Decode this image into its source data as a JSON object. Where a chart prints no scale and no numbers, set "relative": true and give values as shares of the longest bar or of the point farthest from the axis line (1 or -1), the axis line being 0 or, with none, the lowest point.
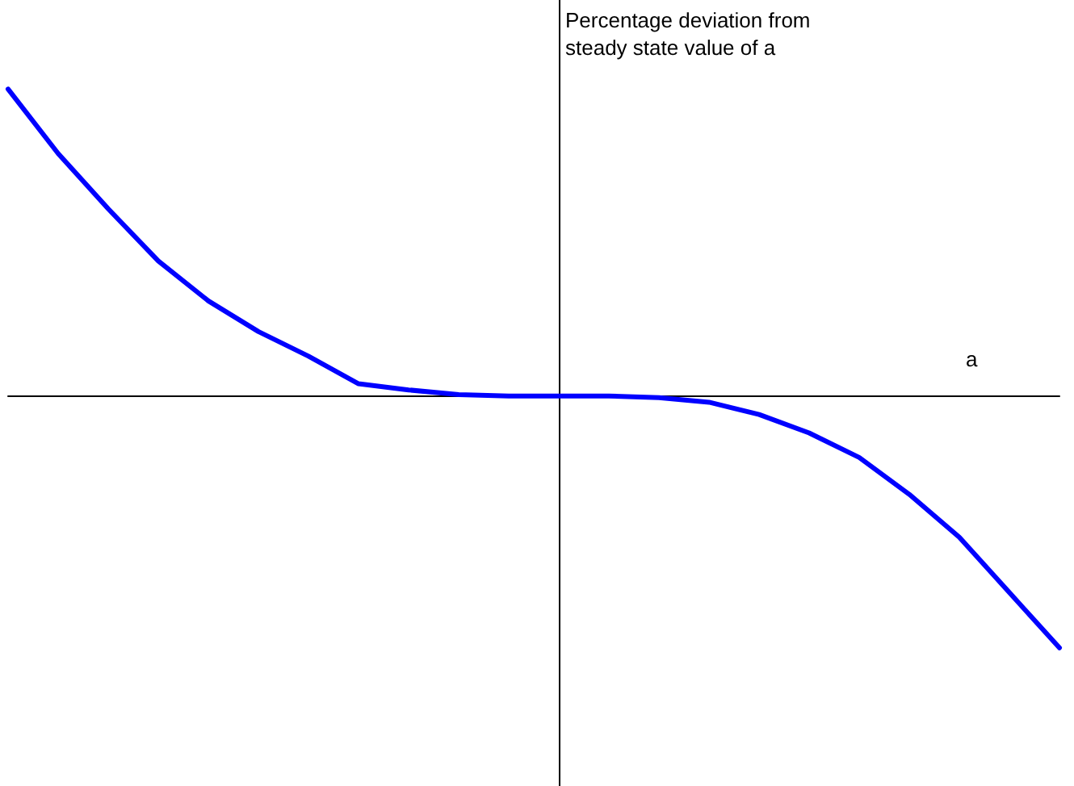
{
  "chart_data": {
    "type": "line",
    "relative": true,
    "xlabel": "a",
    "ylabel": "Percentage deviation from steady state value of a",
    "categories": [
      null,
      null,
      null,
      null,
      null,
      null,
      null,
      null,
      null,
      null,
      null,
      null,
      null,
      null,
      null,
      null,
      null,
      null,
      null,
      null,
      null,
      null
    ],
    "series": [
      {
        "color": "#0000ff",
        "values": [
          1,
          0.79,
          0.61,
          0.44,
          0.31,
          0.21,
          0.13,
          0.04,
          0.02,
          0.005,
          0,
          0,
          0,
          -0.005,
          -0.02,
          -0.06,
          -0.12,
          -0.2,
          -0.32,
          -0.46,
          -0.64,
          -0.82
        ]
      }
    ],
    "marker": "none",
    "line_style": "solid"
  }
}
